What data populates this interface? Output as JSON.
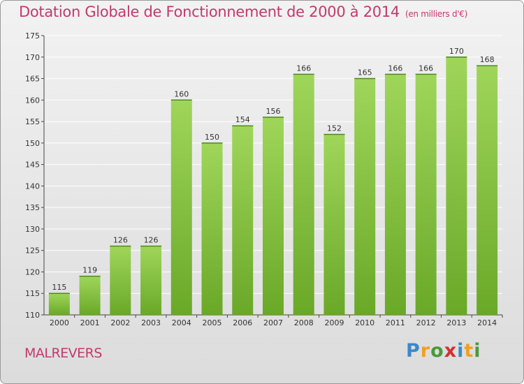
{
  "title": "Dotation Globale de Fonctionnement de 2000 à 2014",
  "subtitle": "(en milliers d'€)",
  "commune": "MALREVERS",
  "logo": {
    "brand": "Proxiti"
  },
  "colors": {
    "bar_light": "#9fd65a",
    "bar_dark": "#6aa828",
    "title": "#c23a6b",
    "grid": "#ffffff"
  },
  "chart_data": {
    "type": "bar",
    "title": "Dotation Globale de Fonctionnement de 2000 à 2014",
    "subtitle": "(en milliers d'€)",
    "xlabel": "",
    "ylabel": "",
    "categories": [
      "2000",
      "2001",
      "2002",
      "2003",
      "2004",
      "2005",
      "2006",
      "2007",
      "2008",
      "2009",
      "2010",
      "2011",
      "2012",
      "2013",
      "2014"
    ],
    "values": [
      115,
      119,
      126,
      126,
      160,
      150,
      154,
      156,
      166,
      152,
      165,
      166,
      166,
      170,
      168
    ],
    "ylim": [
      110,
      175
    ],
    "yticks": [
      110,
      115,
      120,
      125,
      130,
      135,
      140,
      145,
      150,
      155,
      160,
      165,
      170,
      175
    ],
    "grid": true,
    "data_labels": true
  }
}
